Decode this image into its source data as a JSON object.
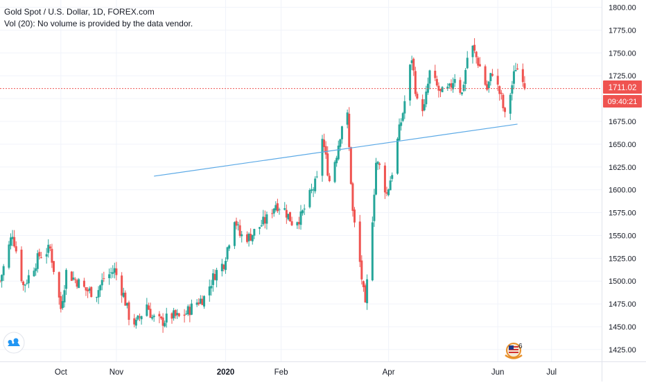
{
  "legend": {
    "title": "Gold Spot / U.S. Dollar, 1D, FOREX.com",
    "volume_note": "Vol (20): No volume is provided by the data vendor."
  },
  "price_label": {
    "value": "1711.02",
    "countdown": "09:40:21"
  },
  "badge": {
    "count": "6"
  },
  "colors": {
    "up": "#26a69a",
    "down": "#ef5350",
    "trendline": "#5ba9e6",
    "price_line": "#ef5350",
    "grid": "#f0f3fa",
    "axis_text": "#131722"
  },
  "chart_data": {
    "type": "candlestick",
    "title": "Gold Spot / U.S. Dollar, 1D, FOREX.com",
    "y_axis": {
      "position": "right",
      "ticks": [
        "1800.00",
        "1775.00",
        "1750.00",
        "1725.00",
        "1700.00",
        "1675.00",
        "1650.00",
        "1625.00",
        "1600.00",
        "1575.00",
        "1550.00",
        "1525.00",
        "1500.00",
        "1475.00",
        "1450.00",
        "1425.00"
      ],
      "range": [
        1412,
        1808
      ]
    },
    "x_axis": {
      "ticks": [
        {
          "label": "Oct",
          "date": "2019-10-01",
          "bold": false
        },
        {
          "label": "Nov",
          "date": "2019-11-01",
          "bold": false
        },
        {
          "label": "2020",
          "date": "2020-01-01",
          "bold": true
        },
        {
          "label": "Feb",
          "date": "2020-02-01",
          "bold": false
        },
        {
          "label": "Apr",
          "date": "2020-04-01",
          "bold": false
        },
        {
          "label": "Jun",
          "date": "2020-06-01",
          "bold": false
        },
        {
          "label": "Jul",
          "date": "2020-07-01",
          "bold": false
        }
      ],
      "range": [
        "2019-08-28",
        "2020-07-29"
      ]
    },
    "last_price": 1711.02,
    "trendline": {
      "from": [
        "2019-11-22",
        1615
      ],
      "to": [
        "2020-06-12",
        1672
      ]
    },
    "path": [
      [
        "2019-08-28",
        1500
      ],
      [
        "2019-09-04",
        1553
      ],
      [
        "2019-09-10",
        1495
      ],
      [
        "2019-09-13",
        1505
      ],
      [
        "2019-09-19",
        1528
      ],
      [
        "2019-09-25",
        1535
      ],
      [
        "2019-10-01",
        1470
      ],
      [
        "2019-10-04",
        1510
      ],
      [
        "2019-10-10",
        1500
      ],
      [
        "2019-10-15",
        1490
      ],
      [
        "2019-10-21",
        1487
      ],
      [
        "2019-10-25",
        1503
      ],
      [
        "2019-10-31",
        1512
      ],
      [
        "2019-11-05",
        1485
      ],
      [
        "2019-11-08",
        1462
      ],
      [
        "2019-11-12",
        1453
      ],
      [
        "2019-11-18",
        1475
      ],
      [
        "2019-11-21",
        1460
      ],
      [
        "2019-11-26",
        1455
      ],
      [
        "2019-12-02",
        1462
      ],
      [
        "2019-12-06",
        1460
      ],
      [
        "2019-12-10",
        1465
      ],
      [
        "2019-12-16",
        1477
      ],
      [
        "2019-12-20",
        1482
      ],
      [
        "2019-12-26",
        1508
      ],
      [
        "2019-12-31",
        1520
      ],
      [
        "2020-01-06",
        1570
      ],
      [
        "2020-01-09",
        1550
      ],
      [
        "2020-01-14",
        1548
      ],
      [
        "2020-01-20",
        1560
      ],
      [
        "2020-01-24",
        1568
      ],
      [
        "2020-01-29",
        1585
      ],
      [
        "2020-02-03",
        1578
      ],
      [
        "2020-02-07",
        1565
      ],
      [
        "2020-02-12",
        1570
      ],
      [
        "2020-02-18",
        1598
      ],
      [
        "2020-02-21",
        1610
      ],
      [
        "2020-02-24",
        1658
      ],
      [
        "2020-02-28",
        1610
      ],
      [
        "2020-03-03",
        1640
      ],
      [
        "2020-03-06",
        1672
      ],
      [
        "2020-03-09",
        1680
      ],
      [
        "2020-03-12",
        1575
      ],
      [
        "2020-03-16",
        1520
      ],
      [
        "2020-03-19",
        1470
      ],
      [
        "2020-03-20",
        1498
      ],
      [
        "2020-03-23",
        1570
      ],
      [
        "2020-03-25",
        1630
      ],
      [
        "2020-03-27",
        1625
      ],
      [
        "2020-03-31",
        1595
      ],
      [
        "2020-04-03",
        1620
      ],
      [
        "2020-04-07",
        1665
      ],
      [
        "2020-04-09",
        1685
      ],
      [
        "2020-04-14",
        1745
      ],
      [
        "2020-04-17",
        1695
      ],
      [
        "2020-04-21",
        1690
      ],
      [
        "2020-04-24",
        1728
      ],
      [
        "2020-04-30",
        1705
      ],
      [
        "2020-05-05",
        1710
      ],
      [
        "2020-05-08",
        1725
      ],
      [
        "2020-05-12",
        1705
      ],
      [
        "2020-05-15",
        1745
      ],
      [
        "2020-05-18",
        1755
      ],
      [
        "2020-05-22",
        1735
      ],
      [
        "2020-05-26",
        1710
      ],
      [
        "2020-05-29",
        1730
      ],
      [
        "2020-06-03",
        1700
      ],
      [
        "2020-06-05",
        1680
      ],
      [
        "2020-06-09",
        1715
      ],
      [
        "2020-06-11",
        1735
      ],
      [
        "2020-06-15",
        1725
      ],
      [
        "2020-06-16",
        1711.02
      ]
    ]
  }
}
